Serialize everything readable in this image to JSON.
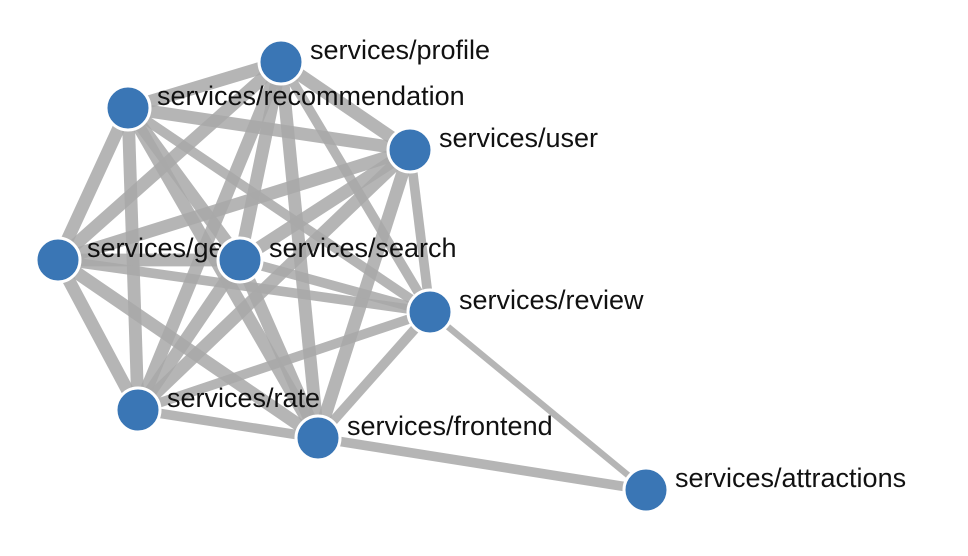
{
  "graph": {
    "colors": {
      "node_fill": "#3a76b5",
      "node_stroke": "#ffffff",
      "edge": "#a9a9a9",
      "label": "#111111",
      "background": "#ffffff"
    },
    "nodes": [
      {
        "id": "profile",
        "label": "services/profile"
      },
      {
        "id": "recommendation",
        "label": "services/recommendation"
      },
      {
        "id": "user",
        "label": "services/user"
      },
      {
        "id": "geo",
        "label": "services/geo"
      },
      {
        "id": "search",
        "label": "services/search"
      },
      {
        "id": "review",
        "label": "services/review"
      },
      {
        "id": "rate",
        "label": "services/rate"
      },
      {
        "id": "frontend",
        "label": "services/frontend"
      },
      {
        "id": "attractions",
        "label": "services/attractions"
      }
    ],
    "edges": [
      {
        "source": "profile",
        "target": "recommendation",
        "weight": 4
      },
      {
        "source": "profile",
        "target": "user",
        "weight": 4
      },
      {
        "source": "profile",
        "target": "geo",
        "weight": 4
      },
      {
        "source": "profile",
        "target": "search",
        "weight": 4
      },
      {
        "source": "profile",
        "target": "review",
        "weight": 3
      },
      {
        "source": "profile",
        "target": "rate",
        "weight": 4
      },
      {
        "source": "profile",
        "target": "frontend",
        "weight": 4
      },
      {
        "source": "recommendation",
        "target": "user",
        "weight": 4
      },
      {
        "source": "recommendation",
        "target": "geo",
        "weight": 4
      },
      {
        "source": "recommendation",
        "target": "search",
        "weight": 4
      },
      {
        "source": "recommendation",
        "target": "review",
        "weight": 3
      },
      {
        "source": "recommendation",
        "target": "rate",
        "weight": 4
      },
      {
        "source": "recommendation",
        "target": "frontend",
        "weight": 4
      },
      {
        "source": "user",
        "target": "geo",
        "weight": 4
      },
      {
        "source": "user",
        "target": "search",
        "weight": 4
      },
      {
        "source": "user",
        "target": "review",
        "weight": 3
      },
      {
        "source": "user",
        "target": "rate",
        "weight": 4
      },
      {
        "source": "user",
        "target": "frontend",
        "weight": 4
      },
      {
        "source": "geo",
        "target": "search",
        "weight": 4
      },
      {
        "source": "geo",
        "target": "review",
        "weight": 3
      },
      {
        "source": "geo",
        "target": "rate",
        "weight": 4
      },
      {
        "source": "geo",
        "target": "frontend",
        "weight": 4
      },
      {
        "source": "search",
        "target": "review",
        "weight": 3
      },
      {
        "source": "search",
        "target": "rate",
        "weight": 4
      },
      {
        "source": "search",
        "target": "frontend",
        "weight": 4
      },
      {
        "source": "review",
        "target": "rate",
        "weight": 3
      },
      {
        "source": "review",
        "target": "frontend",
        "weight": 3
      },
      {
        "source": "review",
        "target": "attractions",
        "weight": 2
      },
      {
        "source": "rate",
        "target": "frontend",
        "weight": 3
      },
      {
        "source": "frontend",
        "target": "attractions",
        "weight": 3
      }
    ]
  }
}
